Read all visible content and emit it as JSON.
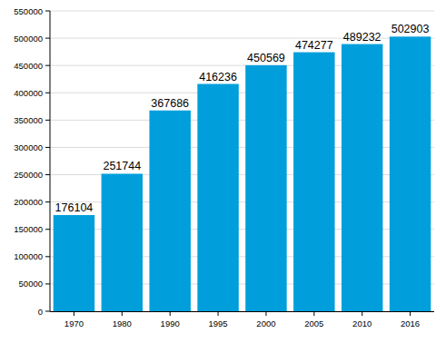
{
  "chart_data": {
    "type": "bar",
    "categories": [
      "1970",
      "1980",
      "1990",
      "1995",
      "2000",
      "2005",
      "2010",
      "2016"
    ],
    "values": [
      176104,
      251744,
      367686,
      416236,
      450569,
      474277,
      489232,
      502903
    ],
    "color": "#009fdc",
    "ylim": [
      0,
      550000
    ],
    "yticks": [
      0,
      50000,
      100000,
      150000,
      200000,
      250000,
      300000,
      350000,
      400000,
      450000,
      500000,
      550000
    ],
    "grid": true,
    "data_labels": true
  }
}
